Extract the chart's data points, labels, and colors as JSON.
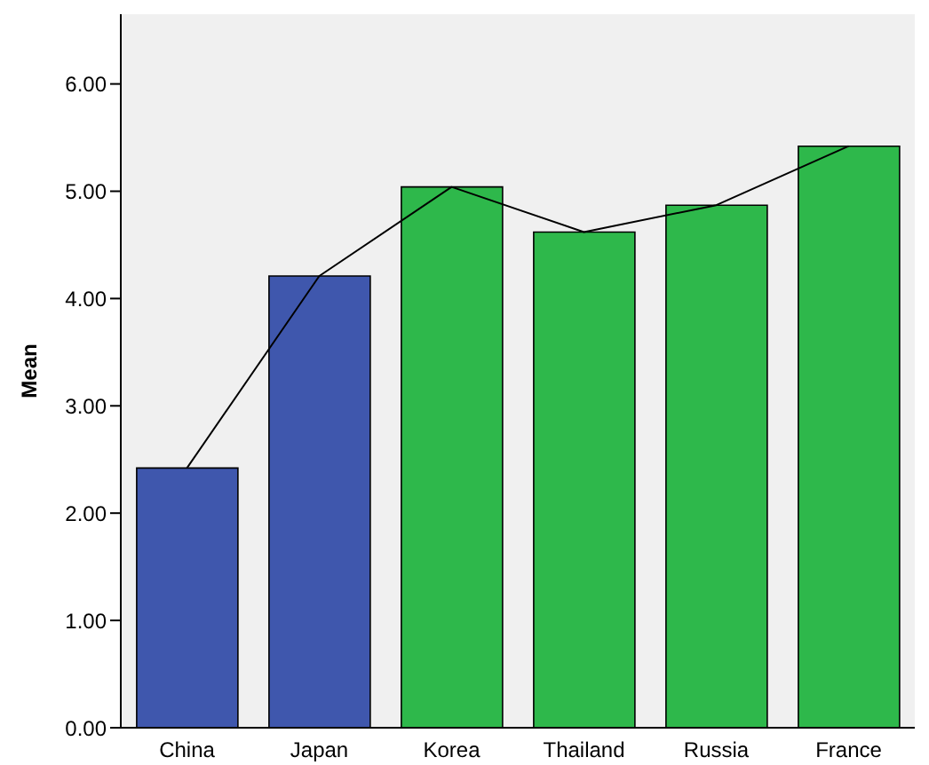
{
  "chart_data": {
    "type": "bar",
    "ylabel": "Mean",
    "categories": [
      "China",
      "Japan",
      "Korea",
      "Thailand",
      "Russia",
      "France"
    ],
    "series": [
      {
        "values": [
          2.42,
          4.21,
          5.04,
          4.62,
          4.87,
          5.42
        ],
        "colors": [
          "#3f57ad",
          "#3f57ad",
          "#2eb84b",
          "#2eb84b",
          "#2eb84b",
          "#2eb84b"
        ]
      },
      {
        "type": "line",
        "color": "#000000",
        "values": [
          2.42,
          4.21,
          5.04,
          4.62,
          4.87,
          5.42
        ]
      }
    ],
    "ylim": [
      0,
      6.65
    ],
    "yticks": [
      {
        "value": 0,
        "label": "0.00"
      },
      {
        "value": 1,
        "label": "1.00"
      },
      {
        "value": 2,
        "label": "2.00"
      },
      {
        "value": 3,
        "label": "3.00"
      },
      {
        "value": 4,
        "label": "4.00"
      },
      {
        "value": 5,
        "label": "5.00"
      },
      {
        "value": 6,
        "label": "6.00"
      }
    ],
    "legend": false,
    "marker": "none"
  }
}
